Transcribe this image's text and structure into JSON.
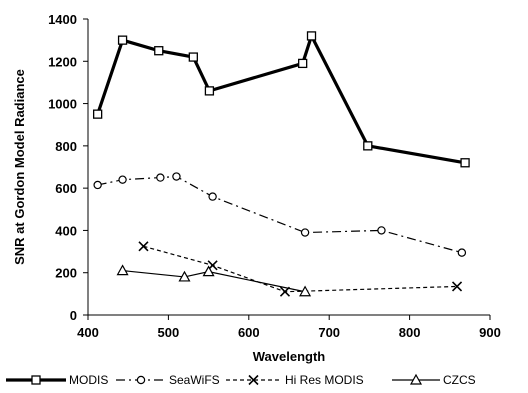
{
  "chart_data": {
    "type": "line",
    "xlabel": "Wavelength",
    "ylabel": "SNR at Gordon Model Radiance",
    "xlim": [
      400,
      900
    ],
    "ylim": [
      0,
      1400
    ],
    "xticks": [
      400,
      500,
      600,
      700,
      800,
      900
    ],
    "yticks": [
      0,
      200,
      400,
      600,
      800,
      1000,
      1200,
      1400
    ],
    "grid": false,
    "legend_position": "bottom",
    "series": [
      {
        "name": "MODIS",
        "marker": "square",
        "color": "#000000",
        "line_style": "solid-thick",
        "x": [
          412,
          443,
          488,
          531,
          551,
          667,
          678,
          748,
          869
        ],
        "y": [
          950,
          1300,
          1250,
          1220,
          1060,
          1190,
          1320,
          800,
          720
        ]
      },
      {
        "name": "SeaWiFS",
        "marker": "circle",
        "color": "#000000",
        "line_style": "dash-dot",
        "x": [
          412,
          443,
          490,
          510,
          555,
          670,
          765,
          865
        ],
        "y": [
          615,
          640,
          650,
          655,
          560,
          390,
          400,
          295
        ]
      },
      {
        "name": "Hi Res MODIS",
        "marker": "x",
        "color": "#000000",
        "line_style": "dashed",
        "x": [
          469,
          555,
          645,
          859
        ],
        "y": [
          325,
          235,
          110,
          135
        ]
      },
      {
        "name": "CZCS",
        "marker": "triangle",
        "color": "#000000",
        "line_style": "solid-thin",
        "x": [
          443,
          520,
          550,
          670
        ],
        "y": [
          210,
          180,
          205,
          110
        ]
      }
    ]
  }
}
